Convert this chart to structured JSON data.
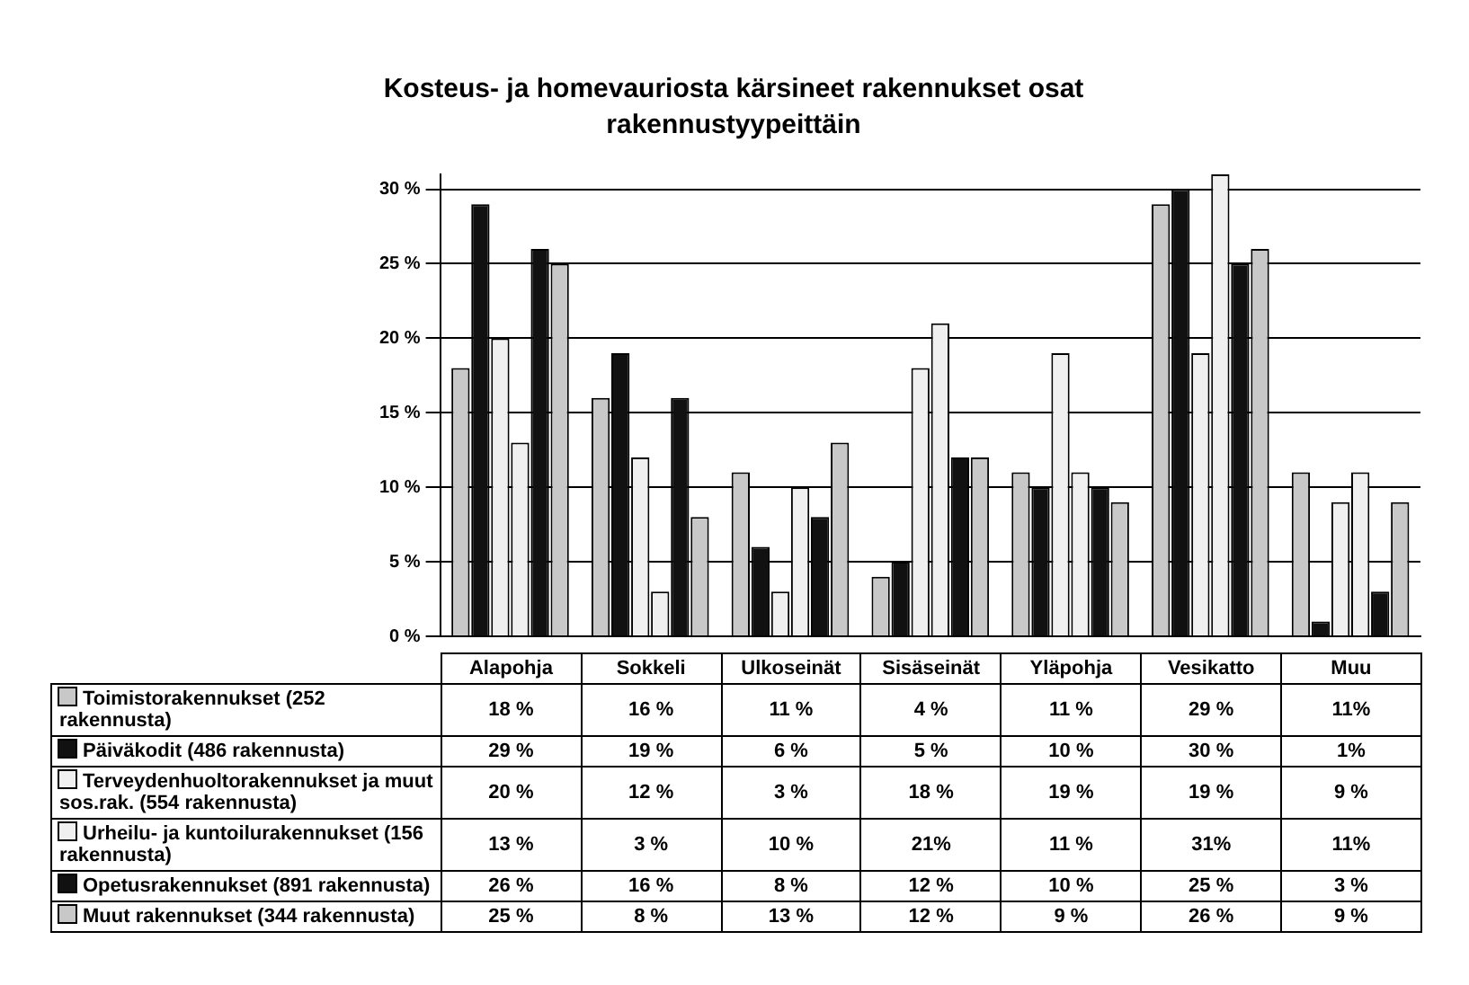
{
  "chart_data": {
    "type": "bar",
    "title": "Kosteus- ja homevauriosta kärsineet rakennukset osat rakennustyypeittäin",
    "categories": [
      "Alapohja",
      "Sokkeli",
      "Ulkoseinät",
      "Sisäseinät",
      "Yläpohja",
      "Vesikatto",
      "Muu"
    ],
    "series": [
      {
        "name": "Toimistorakennukset (252 rakennusta)",
        "color": "#c8c8c8",
        "values": [
          18,
          16,
          11,
          4,
          11,
          29,
          11
        ],
        "value_labels": [
          "18 %",
          "16 %",
          "11 %",
          "4 %",
          "11 %",
          "29 %",
          "11%"
        ]
      },
      {
        "name": "Päiväkodit (486 rakennusta)",
        "color": "#111111",
        "values": [
          29,
          19,
          6,
          5,
          10,
          30,
          1
        ],
        "value_labels": [
          "29 %",
          "19 %",
          "6 %",
          "5 %",
          "10 %",
          "30 %",
          "1%"
        ]
      },
      {
        "name": "Terveydenhuoltorakennukset ja muut sos.rak. (554 rakennusta)",
        "color": "#f0f0f0",
        "values": [
          20,
          12,
          3,
          18,
          19,
          19,
          9
        ],
        "value_labels": [
          "20 %",
          "12 %",
          "3 %",
          "18 %",
          "19 %",
          "19 %",
          "9 %"
        ]
      },
      {
        "name": "Urheilu- ja kuntoilurakennukset (156 rakennusta)",
        "color": "#f0f0f0",
        "values": [
          13,
          3,
          10,
          21,
          11,
          31,
          11
        ],
        "value_labels": [
          "13 %",
          "3 %",
          "10 %",
          "21%",
          "11 %",
          "31%",
          "11%"
        ]
      },
      {
        "name": "Opetusrakennukset (891 rakennusta)",
        "color": "#111111",
        "values": [
          26,
          16,
          8,
          12,
          10,
          25,
          3
        ],
        "value_labels": [
          "26 %",
          "16 %",
          "8 %",
          "12 %",
          "10 %",
          "25 %",
          "3 %"
        ]
      },
      {
        "name": "Muut rakennukset (344 rakennusta)",
        "color": "#c8c8c8",
        "values": [
          25,
          8,
          13,
          12,
          9,
          26,
          9
        ],
        "value_labels": [
          "25 %",
          "8 %",
          "13 %",
          "12 %",
          "9 %",
          "26 %",
          "9 %"
        ]
      }
    ],
    "ylim": [
      0,
      31
    ],
    "yticks": [
      {
        "value": 0,
        "label": "0 %"
      },
      {
        "value": 5,
        "label": "5 %"
      },
      {
        "value": 10,
        "label": "10 %"
      },
      {
        "value": 15,
        "label": "15 %"
      },
      {
        "value": 20,
        "label": "20 %"
      },
      {
        "value": 25,
        "label": "25 %"
      },
      {
        "value": 30,
        "label": "30 %"
      }
    ],
    "grid": "y",
    "legend": "bottom"
  }
}
